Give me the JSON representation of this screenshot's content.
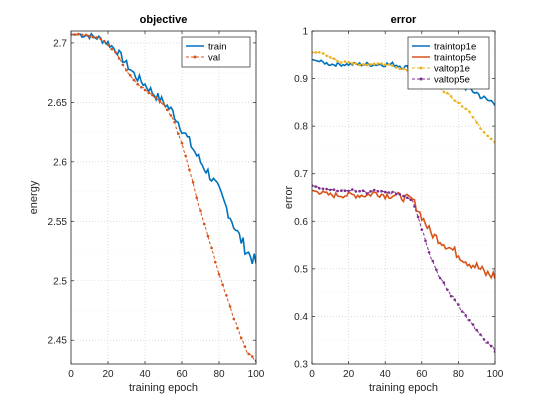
{
  "chart_data": [
    {
      "type": "line",
      "title": "objective",
      "xlabel": "training epoch",
      "ylabel": "energy",
      "xlim": [
        0,
        100
      ],
      "ylim": [
        2.43,
        2.71
      ],
      "xticks": [
        0,
        20,
        40,
        60,
        80,
        100
      ],
      "yticks": [
        2.45,
        2.5,
        2.55,
        2.6,
        2.65,
        2.7
      ],
      "ytick_labels": [
        "2.45",
        "2.5",
        "2.55",
        "2.6",
        "2.65",
        "2.7"
      ],
      "grid": true,
      "legend_position": "top-right",
      "x": [
        0,
        5,
        10,
        15,
        20,
        25,
        30,
        35,
        40,
        45,
        50,
        55,
        60,
        65,
        70,
        75,
        80,
        85,
        90,
        95,
        100
      ],
      "series": [
        {
          "name": "train",
          "color": "#0072BD",
          "marker": "none",
          "noise": 0.006,
          "values": [
            2.707,
            2.707,
            2.706,
            2.704,
            2.7,
            2.693,
            2.682,
            2.672,
            2.665,
            2.657,
            2.65,
            2.642,
            2.628,
            2.614,
            2.6,
            2.589,
            2.575,
            2.558,
            2.54,
            2.525,
            2.515
          ]
        },
        {
          "name": "val",
          "color": "#D95319",
          "marker": "dot",
          "noise": 0.0012,
          "values": [
            2.707,
            2.707,
            2.706,
            2.704,
            2.699,
            2.69,
            2.677,
            2.667,
            2.661,
            2.655,
            2.648,
            2.637,
            2.616,
            2.588,
            2.558,
            2.532,
            2.505,
            2.482,
            2.46,
            2.44,
            2.433
          ]
        }
      ]
    },
    {
      "type": "line",
      "title": "error",
      "xlabel": "training epoch",
      "ylabel": "error",
      "xlim": [
        0,
        100
      ],
      "ylim": [
        0.3,
        1.0
      ],
      "xticks": [
        0,
        20,
        40,
        60,
        80,
        100
      ],
      "yticks": [
        0.3,
        0.4,
        0.5,
        0.6,
        0.7,
        0.8,
        0.9,
        1.0
      ],
      "ytick_labels": [
        "0.3",
        "0.4",
        "0.5",
        "0.6",
        "0.7",
        "0.8",
        "0.9",
        "1"
      ],
      "grid": true,
      "legend_position": "top-right",
      "x": [
        0,
        5,
        10,
        15,
        20,
        25,
        30,
        35,
        40,
        45,
        50,
        55,
        60,
        65,
        70,
        75,
        80,
        85,
        90,
        95,
        100
      ],
      "series": [
        {
          "name": "traintop1e",
          "color": "#0072BD",
          "marker": "none",
          "noise": 0.008,
          "values": [
            0.94,
            0.935,
            0.93,
            0.93,
            0.93,
            0.93,
            0.93,
            0.93,
            0.93,
            0.93,
            0.925,
            0.92,
            0.915,
            0.91,
            0.9,
            0.895,
            0.89,
            0.88,
            0.87,
            0.855,
            0.85
          ]
        },
        {
          "name": "traintop5e",
          "color": "#D95319",
          "marker": "none",
          "noise": 0.012,
          "values": [
            0.665,
            0.66,
            0.655,
            0.655,
            0.655,
            0.655,
            0.655,
            0.66,
            0.655,
            0.655,
            0.65,
            0.645,
            0.61,
            0.575,
            0.56,
            0.545,
            0.53,
            0.515,
            0.505,
            0.49,
            0.485
          ]
        },
        {
          "name": "valtop1e",
          "color": "#EDB120",
          "marker": "dot",
          "noise": 0.003,
          "values": [
            0.955,
            0.955,
            0.945,
            0.935,
            0.935,
            0.93,
            0.93,
            0.93,
            0.93,
            0.925,
            0.92,
            0.915,
            0.905,
            0.895,
            0.88,
            0.865,
            0.85,
            0.835,
            0.81,
            0.78,
            0.765
          ]
        },
        {
          "name": "valtop5e",
          "color": "#7E2F8E",
          "marker": "dot",
          "noise": 0.004,
          "values": [
            0.675,
            0.67,
            0.665,
            0.665,
            0.665,
            0.665,
            0.66,
            0.665,
            0.66,
            0.66,
            0.655,
            0.645,
            0.585,
            0.525,
            0.48,
            0.45,
            0.425,
            0.395,
            0.37,
            0.345,
            0.33
          ]
        }
      ]
    }
  ]
}
